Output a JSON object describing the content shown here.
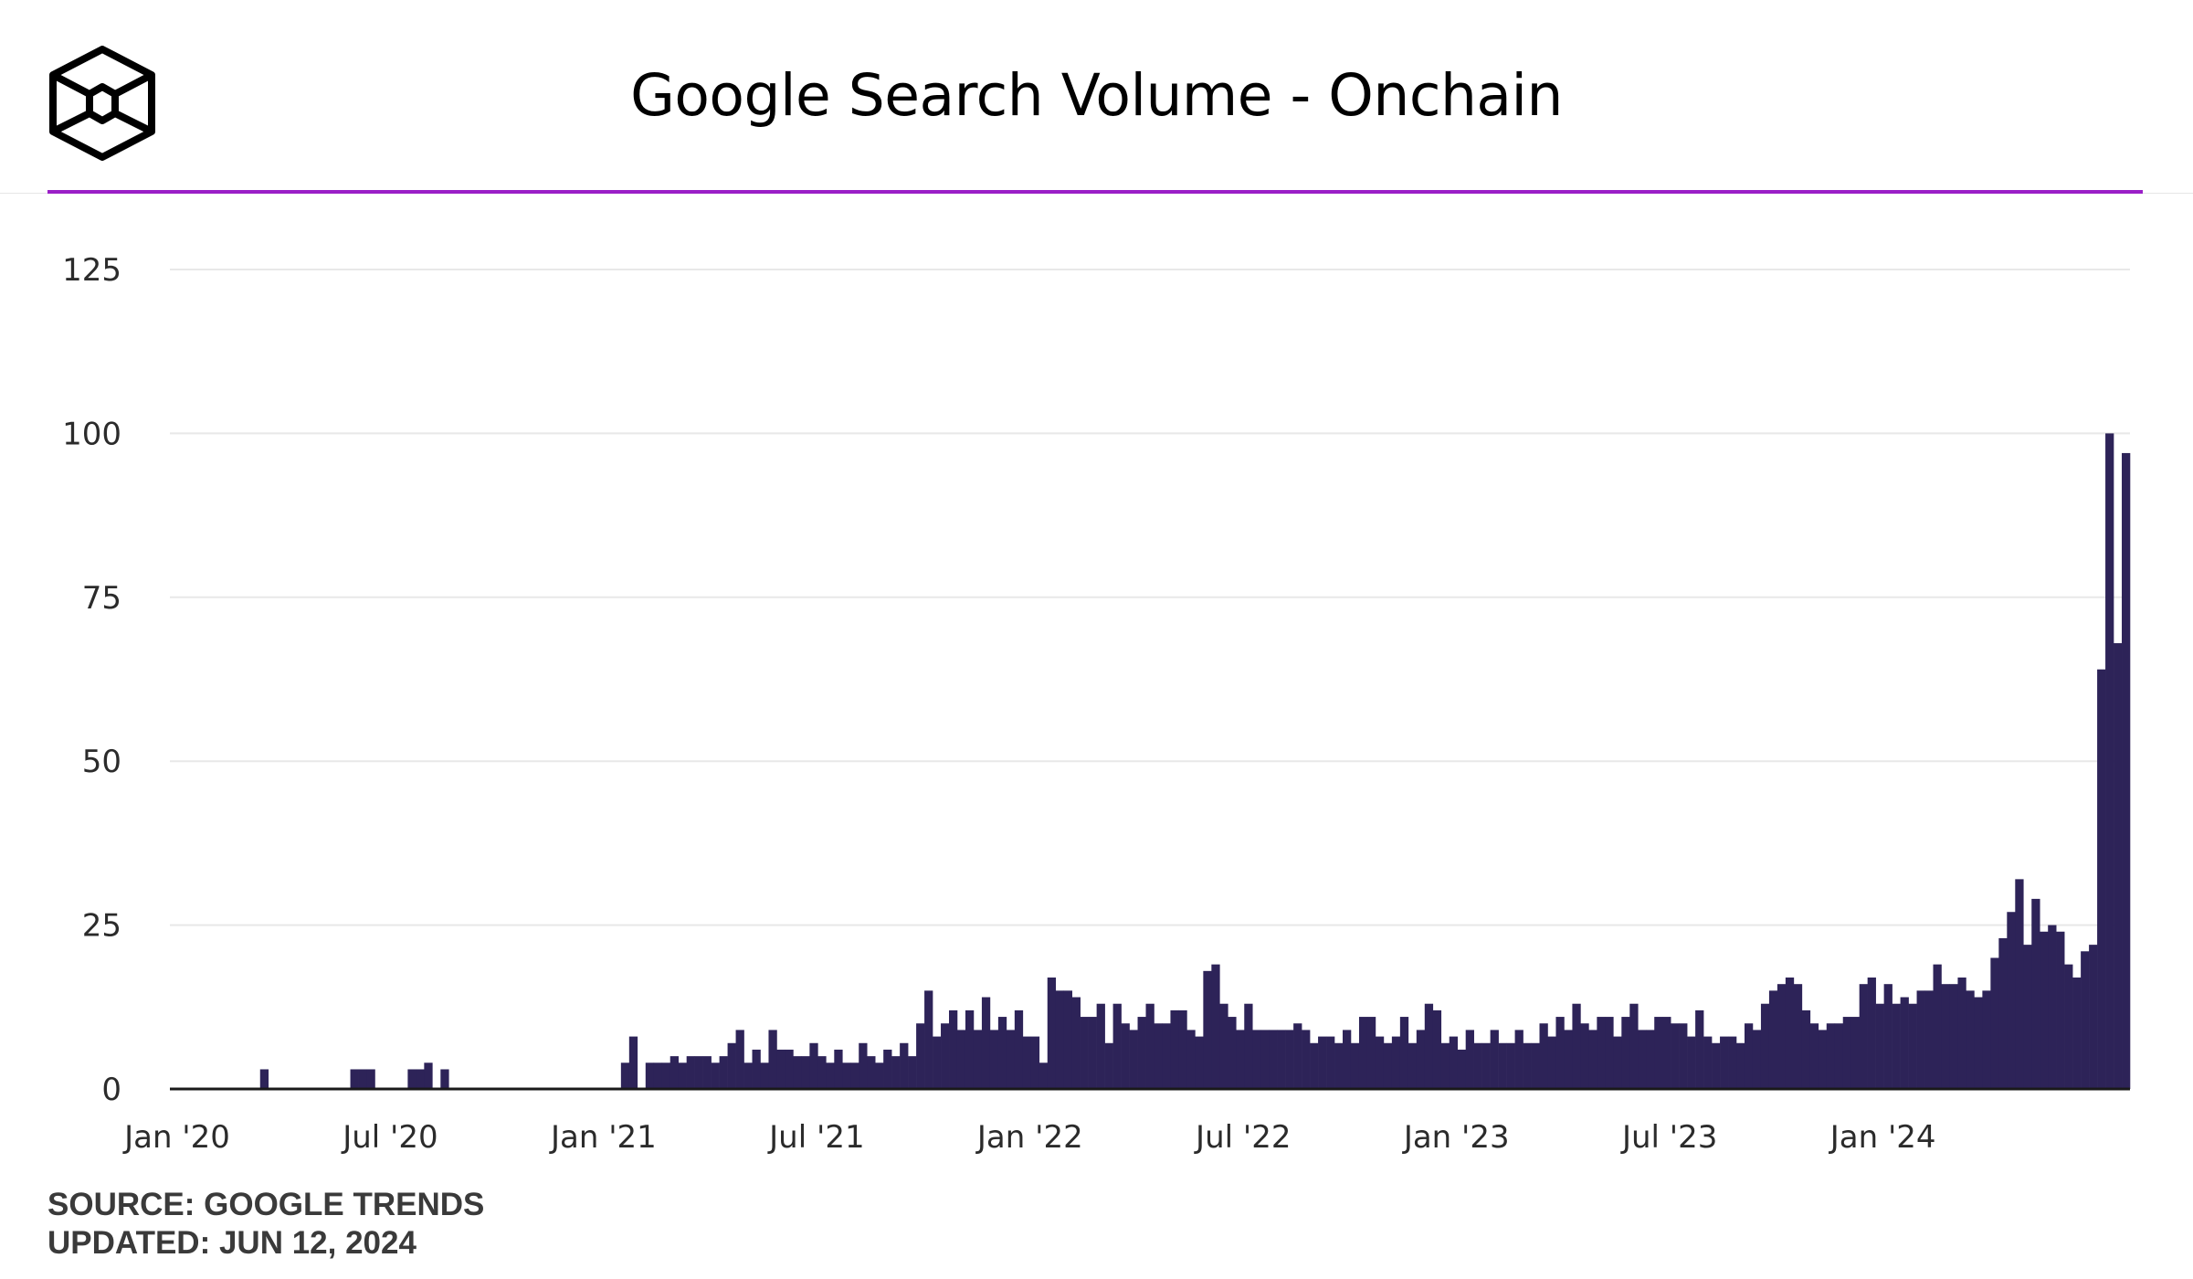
{
  "header": {
    "title": "Google Search Volume - Onchain",
    "accent_color": "#9a1fc7",
    "logo_icon": "cube-logo-icon"
  },
  "footer": {
    "source": "SOURCE: GOOGLE TRENDS",
    "updated": "UPDATED: JUN 12, 2024"
  },
  "chart_data": {
    "type": "bar",
    "title": "Google Search Volume - Onchain",
    "xlabel": "",
    "ylabel": "",
    "ylim": [
      0,
      125
    ],
    "yticks": [
      0,
      25,
      50,
      75,
      100,
      125
    ],
    "grid": true,
    "bar_color": "#2d2358",
    "x_start": "2020-01-05",
    "interval": "weekly",
    "xtick_labels": [
      {
        "label": "Jan '20",
        "index": 0
      },
      {
        "label": "Jul '20",
        "index": 26
      },
      {
        "label": "Jan '21",
        "index": 52
      },
      {
        "label": "Jul '21",
        "index": 78
      },
      {
        "label": "Jan '22",
        "index": 104
      },
      {
        "label": "Jul '22",
        "index": 130
      },
      {
        "label": "Jan '23",
        "index": 156
      },
      {
        "label": "Jul '23",
        "index": 182
      },
      {
        "label": "Jan '24",
        "index": 208
      }
    ],
    "values": [
      0,
      0,
      0,
      0,
      0,
      0,
      0,
      0,
      0,
      0,
      0,
      3,
      0,
      0,
      0,
      0,
      0,
      0,
      0,
      0,
      0,
      0,
      3,
      3,
      3,
      0,
      0,
      0,
      0,
      3,
      3,
      4,
      0,
      3,
      0,
      0,
      0,
      0,
      0,
      0,
      0,
      0,
      0,
      0,
      0,
      0,
      0,
      0,
      0,
      0,
      0,
      0,
      0,
      0,
      0,
      4,
      8,
      0,
      4,
      4,
      4,
      5,
      4,
      5,
      5,
      5,
      4,
      5,
      7,
      9,
      4,
      6,
      4,
      9,
      6,
      6,
      5,
      5,
      7,
      5,
      4,
      6,
      4,
      4,
      7,
      5,
      4,
      6,
      5,
      7,
      5,
      10,
      15,
      8,
      10,
      12,
      9,
      12,
      9,
      14,
      9,
      11,
      9,
      12,
      8,
      8,
      4,
      17,
      15,
      15,
      14,
      11,
      11,
      13,
      7,
      13,
      10,
      9,
      11,
      13,
      10,
      10,
      12,
      12,
      9,
      8,
      18,
      19,
      13,
      11,
      9,
      13,
      9,
      9,
      9,
      9,
      9,
      10,
      9,
      7,
      8,
      8,
      7,
      9,
      7,
      11,
      11,
      8,
      7,
      8,
      11,
      7,
      9,
      13,
      12,
      7,
      8,
      6,
      9,
      7,
      7,
      9,
      7,
      7,
      9,
      7,
      7,
      10,
      8,
      11,
      9,
      13,
      10,
      9,
      11,
      11,
      8,
      11,
      13,
      9,
      9,
      11,
      11,
      10,
      10,
      8,
      12,
      8,
      7,
      8,
      8,
      7,
      10,
      9,
      13,
      15,
      16,
      17,
      16,
      12,
      10,
      9,
      10,
      10,
      11,
      11,
      16,
      17,
      13,
      16,
      13,
      14,
      13,
      15,
      15,
      19,
      16,
      16,
      17,
      15,
      14,
      15,
      20,
      23,
      27,
      32,
      22,
      29,
      24,
      25,
      24,
      19,
      17,
      21,
      22,
      64,
      100,
      68,
      97
    ]
  }
}
